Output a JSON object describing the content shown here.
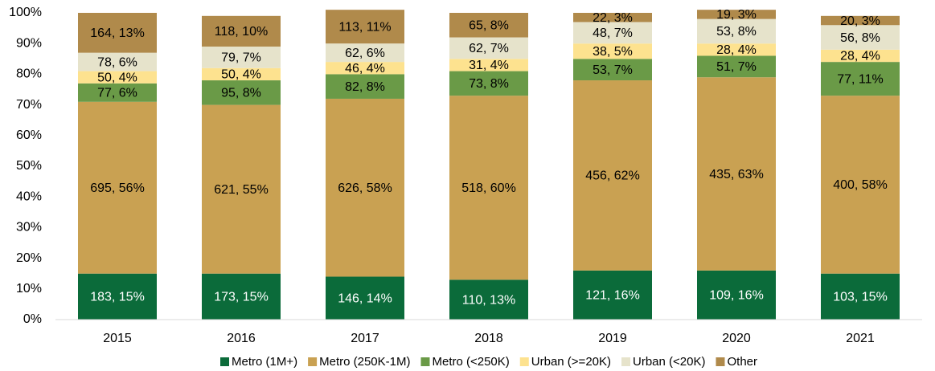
{
  "chart_data": {
    "type": "stacked_bar",
    "categories": [
      "2015",
      "2016",
      "2017",
      "2018",
      "2019",
      "2020",
      "2021"
    ],
    "series": [
      {
        "name": "Metro (1M+)",
        "color": "#0b6b3a",
        "values": [
          15,
          15,
          14,
          13,
          16,
          16,
          15
        ],
        "value_labels": [
          "183, 15%",
          "173, 15%",
          "146, 14%",
          "110, 13%",
          "121, 16%",
          "109, 16%",
          "103, 15%"
        ]
      },
      {
        "name": "Metro (250K-1M)",
        "color": "#c9a152",
        "values": [
          56,
          55,
          58,
          60,
          62,
          63,
          58
        ],
        "value_labels": [
          "695, 56%",
          "621, 55%",
          "626, 58%",
          "518, 60%",
          "456, 62%",
          "435, 63%",
          "400, 58%"
        ]
      },
      {
        "name": "Metro (<250K)",
        "color": "#6a9a47",
        "values": [
          6,
          8,
          8,
          8,
          7,
          7,
          11
        ],
        "value_labels": [
          "77, 6%",
          "95, 8%",
          "82, 8%",
          "73, 8%",
          "53, 7%",
          "51, 7%",
          "77, 11%"
        ]
      },
      {
        "name": "Urban (>=20K)",
        "color": "#fde28f",
        "values": [
          4,
          4,
          4,
          4,
          5,
          4,
          4
        ],
        "value_labels": [
          "50, 4%",
          "50, 4%",
          "46, 4%",
          "31, 4%",
          "38, 5%",
          "28, 4%",
          "28, 4%"
        ]
      },
      {
        "name": "Urban (<20K)",
        "color": "#e6e3cb",
        "values": [
          6,
          7,
          6,
          7,
          7,
          8,
          8
        ],
        "value_labels": [
          "78, 6%",
          "79, 7%",
          "62, 6%",
          "62, 7%",
          "48, 7%",
          "53, 8%",
          "56, 8%"
        ]
      },
      {
        "name": "Other",
        "color": "#b08a4b",
        "values": [
          13,
          10,
          11,
          8,
          3,
          3,
          3
        ],
        "value_labels": [
          "164, 13%",
          "118, 10%",
          "113, 11%",
          "65, 8%",
          "22, 3%",
          "19, 3%",
          "20, 3%"
        ]
      }
    ],
    "ylim": [
      0,
      100
    ],
    "yticks": [
      {
        "value": 0,
        "label": "0%"
      },
      {
        "value": 10,
        "label": "10%"
      },
      {
        "value": 20,
        "label": "20%"
      },
      {
        "value": 30,
        "label": "30%"
      },
      {
        "value": 40,
        "label": "40%"
      },
      {
        "value": 50,
        "label": "50%"
      },
      {
        "value": 60,
        "label": "60%"
      },
      {
        "value": 70,
        "label": "70%"
      },
      {
        "value": 80,
        "label": "80%"
      },
      {
        "value": 90,
        "label": "90%"
      },
      {
        "value": 100,
        "label": "100%"
      }
    ],
    "grid": false,
    "legend": "bottom"
  }
}
